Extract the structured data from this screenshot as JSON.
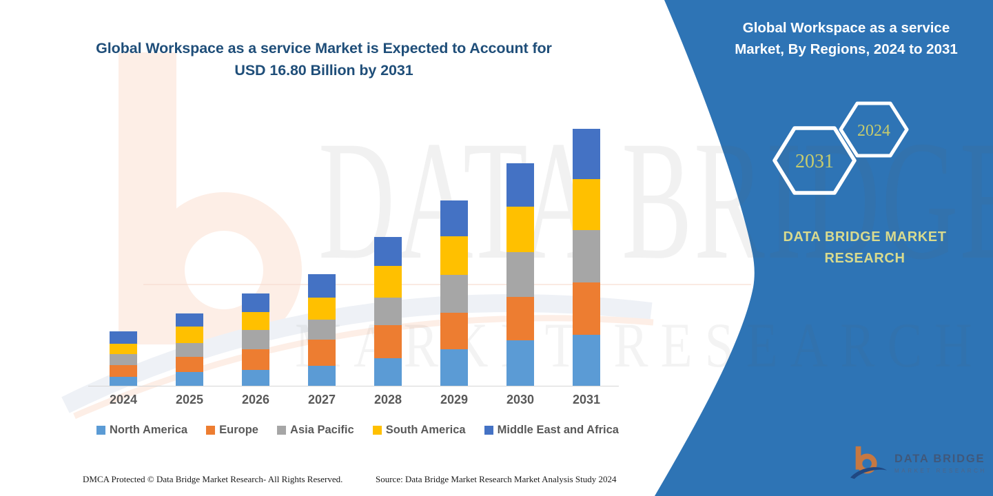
{
  "main_title": {
    "line1": "Global Workspace as a service Market is Expected to Account for",
    "line2": "USD 16.80 Billion by 2031"
  },
  "panel": {
    "title_line1": "Global Workspace as a service",
    "title_line2": "Market, By Regions, 2024 to 2031",
    "hex_left_label": "2031",
    "hex_right_label": "2024",
    "brand_text": "DATA BRIDGE MARKET RESEARCH"
  },
  "watermark": {
    "line1": "DATA BRIDGE",
    "line2": "MARKET RESEARCH"
  },
  "logo": {
    "brand": "DATA BRIDGE",
    "tagline": "MARKET RESEARCH"
  },
  "footer": {
    "dmca": "DMCA Protected © Data Bridge Market Research- All Rights Reserved.",
    "source": "Source: Data Bridge Market Research Market Analysis Study 2024"
  },
  "colors": {
    "panel_blue": "#2e74b5",
    "title_blue": "#1f4e79",
    "hex_label_olive": "#c7cc6d",
    "panel_text_olive": "#d8da8e",
    "axis_text_gray": "#595959",
    "logo_orange": "#e87a2a",
    "logo_navy": "#1e3f77"
  },
  "chart_data": {
    "type": "bar",
    "stacked": true,
    "title": "Global Workspace as a service Market is Expected to Account for USD 16.80 Billion by 2031",
    "unit": "USD Billion",
    "highlight_value_2031": "USD 16.80 Billion",
    "categories": [
      "2024",
      "2025",
      "2026",
      "2027",
      "2028",
      "2029",
      "2030",
      "2031"
    ],
    "series": [
      {
        "name": "North America",
        "color": "#5b9bd5",
        "values": [
          0.59,
          0.91,
          1.05,
          1.32,
          1.82,
          2.37,
          2.96,
          3.32
        ]
      },
      {
        "name": "Europe",
        "color": "#ed7d31",
        "values": [
          0.77,
          0.96,
          1.32,
          1.68,
          2.14,
          2.41,
          2.87,
          3.42
        ]
      },
      {
        "name": "Asia Pacific",
        "color": "#a6a6a6",
        "values": [
          0.73,
          0.91,
          1.27,
          1.32,
          1.82,
          2.46,
          2.91,
          3.42
        ]
      },
      {
        "name": "South America",
        "color": "#ffc000",
        "values": [
          0.68,
          1.09,
          1.18,
          1.46,
          2.05,
          2.55,
          2.96,
          3.37
        ]
      },
      {
        "name": "Middle East and Africa",
        "color": "#4472c4",
        "values": [
          0.77,
          0.87,
          1.23,
          1.5,
          1.91,
          2.32,
          2.87,
          3.27
        ]
      }
    ],
    "totals": [
      3.54,
      4.74,
      6.05,
      7.28,
      9.74,
      12.11,
      14.57,
      16.8
    ],
    "ylim": [
      0,
      17
    ],
    "grid": false,
    "legend_position": "bottom"
  }
}
